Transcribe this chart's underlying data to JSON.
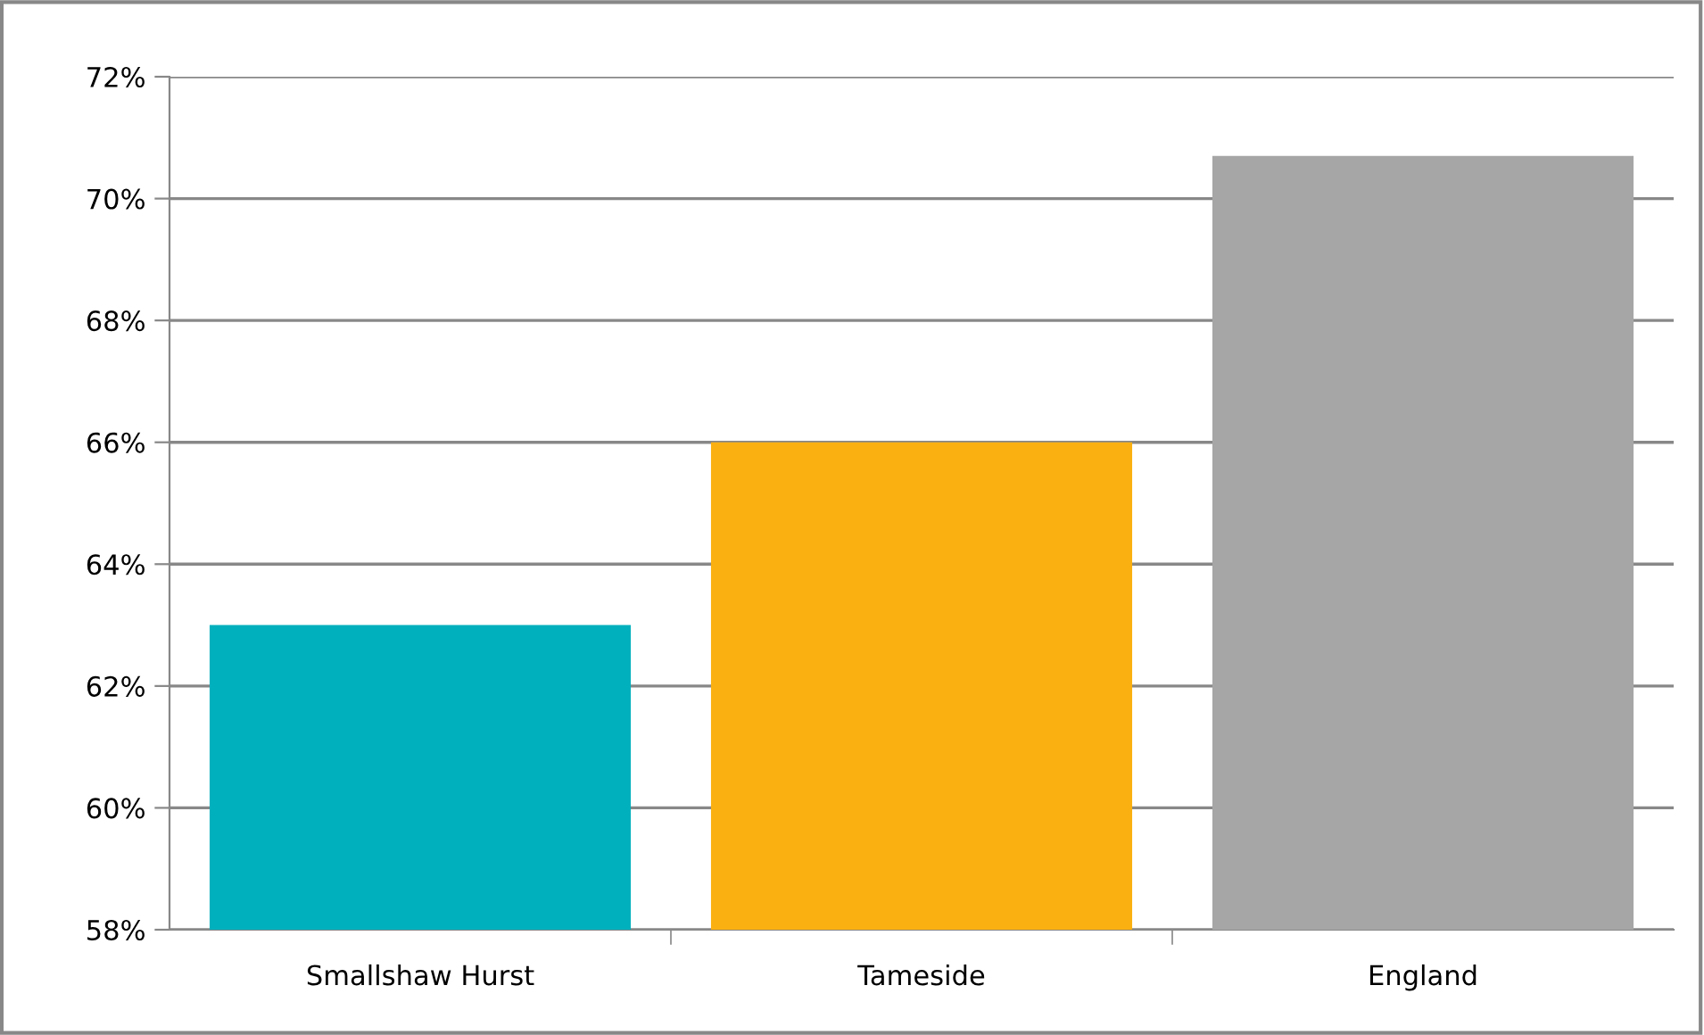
{
  "chart_data": {
    "type": "bar",
    "categories": [
      "Smallshaw Hurst",
      "Tameside",
      "England"
    ],
    "values": [
      63,
      66,
      70.7
    ],
    "colors": [
      "#00b0bd",
      "#fbb011",
      "#a6a6a6"
    ],
    "ylim": [
      58,
      72
    ],
    "yticks": [
      {
        "value": 58,
        "label": "58%"
      },
      {
        "value": 60,
        "label": "60%"
      },
      {
        "value": 62,
        "label": "62%"
      },
      {
        "value": 64,
        "label": "64%"
      },
      {
        "value": 66,
        "label": "66%"
      },
      {
        "value": 68,
        "label": "68%"
      },
      {
        "value": 70,
        "label": "70%"
      },
      {
        "value": 72,
        "label": "72%"
      }
    ],
    "grid": "y",
    "legend": false
  }
}
